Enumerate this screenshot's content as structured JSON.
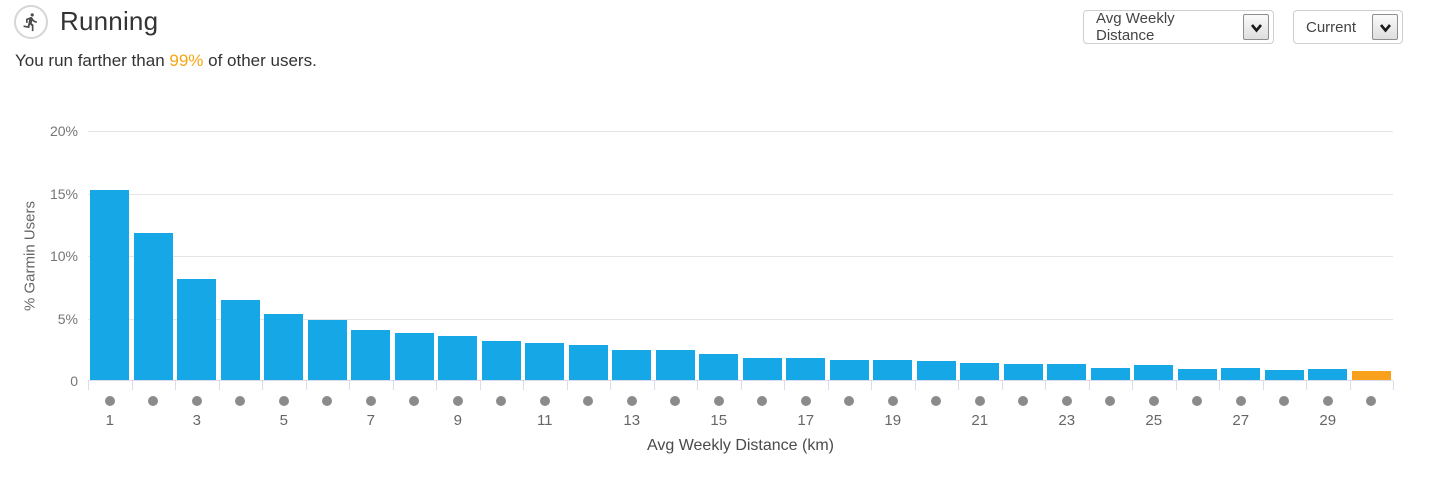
{
  "header": {
    "title": "Running",
    "subtitle_prefix": "You run farther than ",
    "percentile": "99%",
    "subtitle_suffix": " of other users.",
    "icon": "runner-icon"
  },
  "controls": {
    "metric_select": {
      "value": "Avg Weekly Distance",
      "icon": "chevron-down-icon"
    },
    "period_select": {
      "value": "Current",
      "icon": "chevron-down-icon"
    }
  },
  "colors": {
    "bar_blue": "#16a7e6",
    "bar_highlight_orange": "#f9a11c",
    "accent_orange": "#f7a511",
    "gridline": "#e5e5e5",
    "axis": "#d9dcee",
    "dot_gray": "#8b8b8b",
    "tick_text": "#757575"
  },
  "chart_data": {
    "type": "bar",
    "title": "",
    "ylabel": "% Garmin Users",
    "xlabel": "Avg Weekly Distance (km)",
    "x": [
      1,
      2,
      3,
      4,
      5,
      6,
      7,
      8,
      9,
      10,
      11,
      12,
      13,
      14,
      15,
      16,
      17,
      18,
      19,
      20,
      21,
      22,
      23,
      24,
      25,
      26,
      27,
      28,
      29,
      30
    ],
    "values": [
      15.2,
      11.8,
      8.1,
      6.4,
      5.3,
      4.8,
      4.0,
      3.8,
      3.5,
      3.1,
      3.0,
      2.8,
      2.4,
      2.4,
      2.1,
      1.8,
      1.8,
      1.6,
      1.6,
      1.5,
      1.4,
      1.3,
      1.3,
      1.0,
      1.2,
      0.9,
      1.0,
      0.8,
      0.85,
      0.7
    ],
    "highlight_index": 29,
    "ylim": [
      0,
      20
    ],
    "yticks": [
      {
        "value": 0,
        "label": "0"
      },
      {
        "value": 5,
        "label": "5%"
      },
      {
        "value": 10,
        "label": "10%"
      },
      {
        "value": 15,
        "label": "15%"
      },
      {
        "value": 20,
        "label": "20%"
      }
    ],
    "xtick_labeled": [
      1,
      3,
      5,
      7,
      9,
      11,
      13,
      15,
      17,
      19,
      21,
      23,
      25,
      27,
      29
    ],
    "grid": true,
    "legend": false
  }
}
